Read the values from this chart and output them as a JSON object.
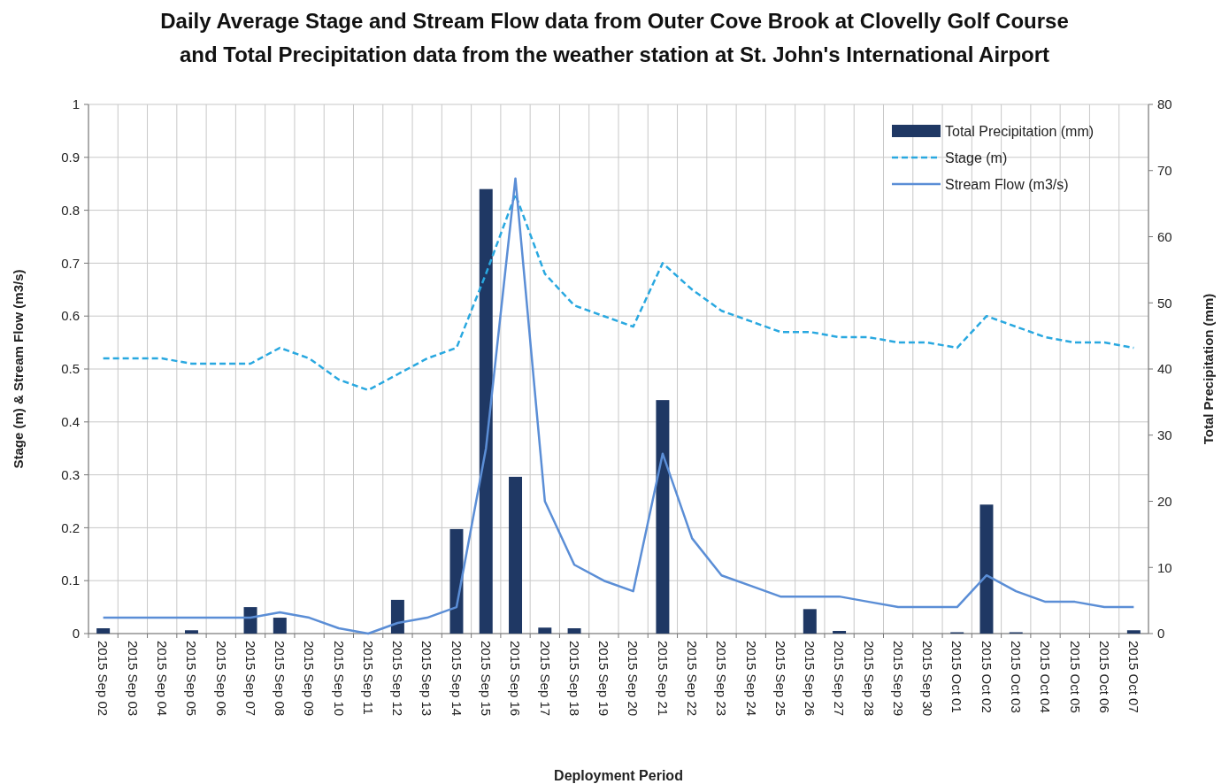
{
  "chart_data": {
    "type": "line",
    "title": "Daily Average Stage and Stream Flow data from Outer Cove Brook at Clovelly Golf Course\nand Total Precipitation data from the weather station at St. John's International Airport",
    "xlabel": "Deployment Period",
    "ylabel": "Stage (m) & Stream Flow (m3/s)",
    "y2label": "Total Precipitation (mm)",
    "categories": [
      "2015 Sep 02",
      "2015 Sep 03",
      "2015 Sep 04",
      "2015 Sep 05",
      "2015 Sep 06",
      "2015 Sep 07",
      "2015 Sep 08",
      "2015 Sep 09",
      "2015 Sep 10",
      "2015 Sep 11",
      "2015 Sep 12",
      "2015 Sep 13",
      "2015 Sep 14",
      "2015 Sep 15",
      "2015 Sep 16",
      "2015 Sep 17",
      "2015 Sep 18",
      "2015 Sep 19",
      "2015 Sep 20",
      "2015 Sep 21",
      "2015 Sep 22",
      "2015 Sep 23",
      "2015 Sep 24",
      "2015 Sep 25",
      "2015 Sep 26",
      "2015 Sep 27",
      "2015 Sep 28",
      "2015 Sep 29",
      "2015 Sep 30",
      "2015 Oct 01",
      "2015 Oct 02",
      "2015 Oct 03",
      "2015 Oct 04",
      "2015 Oct 05",
      "2015 Oct 06",
      "2015 Oct 07"
    ],
    "series": [
      {
        "name": "Total Precipitation (mm)",
        "type": "bar",
        "axis": "y2",
        "color": "#1f3864",
        "values": [
          0.8,
          0,
          0,
          0.5,
          0,
          4.0,
          2.4,
          0,
          null,
          null,
          5.1,
          0,
          15.8,
          67.2,
          23.7,
          0.9,
          0.8,
          0,
          0,
          35.3,
          0,
          0,
          0,
          0,
          3.7,
          0.4,
          0,
          0,
          0,
          0.2,
          19.5,
          0.2,
          0,
          0,
          0,
          0.5
        ]
      },
      {
        "name": "Stage (m)",
        "line_style": "dashed",
        "color": "#29a8e0",
        "values": [
          0.52,
          0.52,
          0.52,
          0.51,
          0.51,
          0.51,
          0.54,
          0.52,
          0.48,
          0.46,
          0.49,
          0.52,
          0.54,
          0.68,
          0.83,
          0.68,
          0.62,
          0.6,
          0.58,
          0.7,
          0.65,
          0.61,
          0.59,
          0.57,
          0.57,
          0.56,
          0.56,
          0.55,
          0.55,
          0.54,
          0.6,
          0.58,
          0.56,
          0.55,
          0.55,
          0.54
        ]
      },
      {
        "name": "Stream Flow (m3/s)",
        "line_style": "solid",
        "color": "#5b8ed6",
        "values": [
          0.03,
          0.03,
          0.03,
          0.03,
          0.03,
          0.03,
          0.04,
          0.03,
          0.01,
          0.0,
          0.02,
          0.03,
          0.05,
          0.35,
          0.86,
          0.25,
          0.13,
          0.1,
          0.08,
          0.34,
          0.18,
          0.11,
          0.09,
          0.07,
          0.07,
          0.07,
          0.06,
          0.05,
          0.05,
          0.05,
          0.11,
          0.08,
          0.06,
          0.06,
          0.05,
          0.05
        ]
      }
    ],
    "ylim": [
      0,
      1
    ],
    "yticks": [
      0,
      0.1,
      0.2,
      0.3,
      0.4,
      0.5,
      0.6,
      0.7,
      0.8,
      0.9,
      1
    ],
    "y2lim": [
      0,
      80
    ],
    "y2ticks": [
      0,
      10,
      20,
      30,
      40,
      50,
      60,
      70,
      80
    ],
    "grid": true,
    "legend": "top right",
    "marker": "none"
  }
}
